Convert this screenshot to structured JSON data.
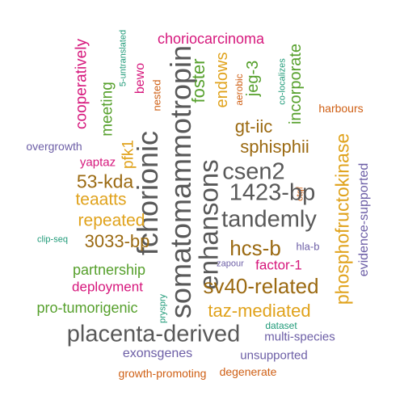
{
  "colors": {
    "gray": "#595959",
    "brown": "#9b6a12",
    "green": "#56a02c",
    "magenta": "#d6177c",
    "purple": "#6c5ea6",
    "orange": "#cf5f14",
    "yellow": "#e0a21b",
    "teal": "#1f9a78"
  },
  "words": [
    "somatomammotropin",
    "fchorionic",
    "enhansons",
    "placenta-derived",
    "tandemly",
    "1423-bp",
    "csen2",
    "sv40-related",
    "phosphofructokinase",
    "hcs-b",
    "3033-bp",
    "53-kda",
    "sphisphii",
    "taz-mediated",
    "choriocarcinoma",
    "repeated",
    "teaatts",
    "gt-iic",
    "partnership",
    "pro-tumorigenic",
    "foster",
    "endows",
    "deployment",
    "factor-1",
    "cooperatively",
    "meeting",
    "evidence-supported",
    "incorporate",
    "jeg-3",
    "pfk1",
    "exonsgenes",
    "unsupported",
    "multi-species",
    "overgrowth",
    "yaptaz",
    "bewo",
    "growth-promoting",
    "degenerate",
    "harbours",
    "hla-b",
    "nested",
    "aerobic",
    "5-untranslated",
    "co-localizes",
    "ctgf",
    "clip-seq",
    "zapour",
    "dataset",
    "pryspry"
  ]
}
